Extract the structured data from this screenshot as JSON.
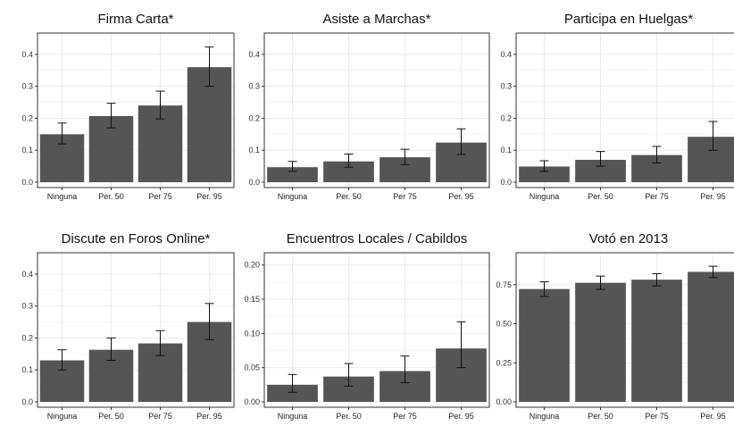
{
  "colors": {
    "bar": "#555555",
    "grid": "#ebebeb",
    "border": "#333333",
    "errorbar": "#111111"
  },
  "chart_data": [
    {
      "type": "bar",
      "title": "Firma Carta*",
      "categories": [
        "Ninguna",
        "Per. 50",
        "Per 75",
        "Per. 95"
      ],
      "values": [
        0.15,
        0.207,
        0.24,
        0.36
      ],
      "error_low": [
        0.12,
        0.17,
        0.198,
        0.3
      ],
      "error_high": [
        0.185,
        0.247,
        0.285,
        0.423
      ],
      "yticks": [
        "0.0",
        "0.1",
        "0.2",
        "0.3",
        "0.4"
      ],
      "ylim": [
        0,
        0.45
      ],
      "grid": true
    },
    {
      "type": "bar",
      "title": "Asiste a Marchas*",
      "categories": [
        "Ninguna",
        "Per. 50",
        "Per 75",
        "Per. 95"
      ],
      "values": [
        0.047,
        0.065,
        0.078,
        0.124
      ],
      "error_low": [
        0.034,
        0.047,
        0.055,
        0.087
      ],
      "error_high": [
        0.065,
        0.088,
        0.103,
        0.167
      ],
      "yticks": [
        "0.0",
        "0.1",
        "0.2",
        "0.3",
        "0.4"
      ],
      "ylim": [
        0,
        0.45
      ],
      "grid": true
    },
    {
      "type": "bar",
      "title": "Participa en Huelgas*",
      "categories": [
        "Ninguna",
        "Per. 50",
        "Per 75",
        "Per. 95"
      ],
      "values": [
        0.049,
        0.07,
        0.085,
        0.142
      ],
      "error_low": [
        0.034,
        0.05,
        0.06,
        0.1
      ],
      "error_high": [
        0.067,
        0.096,
        0.112,
        0.19
      ],
      "yticks": [
        "0.0",
        "0.1",
        "0.2",
        "0.3",
        "0.4"
      ],
      "ylim": [
        0,
        0.45
      ],
      "grid": true
    },
    {
      "type": "bar",
      "title": "Discute en Foros Online*",
      "categories": [
        "Ninguna",
        "Per. 50",
        "Per 75",
        "Per. 95"
      ],
      "values": [
        0.13,
        0.163,
        0.183,
        0.25
      ],
      "error_low": [
        0.1,
        0.13,
        0.145,
        0.195
      ],
      "error_high": [
        0.163,
        0.2,
        0.223,
        0.308
      ],
      "yticks": [
        "0.0",
        "0.1",
        "0.2",
        "0.3",
        "0.4"
      ],
      "ylim": [
        0,
        0.45
      ],
      "grid": true
    },
    {
      "type": "bar",
      "title": "Encuentros Locales / Cabildos",
      "categories": [
        "Ninguna",
        "Per. 50",
        "Per 75",
        "Per. 95"
      ],
      "values": [
        0.025,
        0.037,
        0.045,
        0.078
      ],
      "error_low": [
        0.014,
        0.023,
        0.028,
        0.05
      ],
      "error_high": [
        0.04,
        0.056,
        0.067,
        0.117
      ],
      "yticks": [
        "0.00",
        "0.05",
        "0.10",
        "0.15",
        "0.20"
      ],
      "ylim": [
        0,
        0.21
      ],
      "grid": true
    },
    {
      "type": "bar",
      "title": "Votó en 2013",
      "categories": [
        "Ninguna",
        "Per. 50",
        "Per 75",
        "Per. 95"
      ],
      "values": [
        0.722,
        0.762,
        0.782,
        0.832
      ],
      "error_low": [
        0.675,
        0.72,
        0.742,
        0.795
      ],
      "error_high": [
        0.768,
        0.805,
        0.82,
        0.868
      ],
      "yticks": [
        "0.00",
        "0.25",
        "0.50",
        "0.75"
      ],
      "ylim": [
        0,
        0.92
      ],
      "grid": true
    }
  ]
}
